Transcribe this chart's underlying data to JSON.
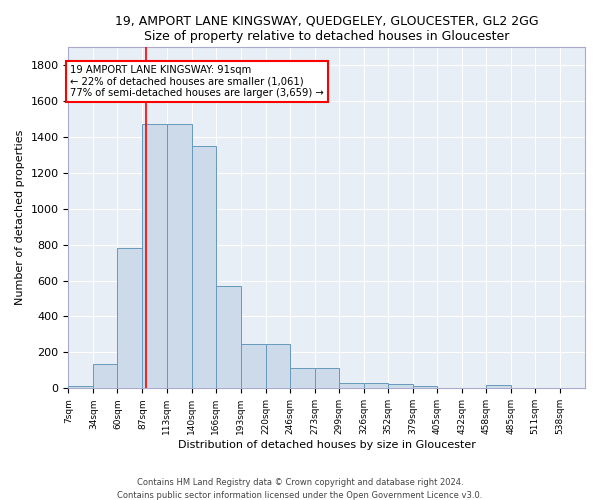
{
  "title": "19, AMPORT LANE KINGSWAY, QUEDGELEY, GLOUCESTER, GL2 2GG",
  "subtitle": "Size of property relative to detached houses in Gloucester",
  "xlabel": "Distribution of detached houses by size in Gloucester",
  "ylabel": "Number of detached properties",
  "bar_color": "#ccdaea",
  "bar_edge_color": "#6699bb",
  "background_color": "#e8eef6",
  "grid_color": "white",
  "categories": [
    "7sqm",
    "34sqm",
    "60sqm",
    "87sqm",
    "113sqm",
    "140sqm",
    "166sqm",
    "193sqm",
    "220sqm",
    "246sqm",
    "273sqm",
    "299sqm",
    "326sqm",
    "352sqm",
    "379sqm",
    "405sqm",
    "432sqm",
    "458sqm",
    "485sqm",
    "511sqm",
    "538sqm"
  ],
  "values": [
    15,
    135,
    780,
    1470,
    1470,
    1350,
    570,
    245,
    245,
    115,
    115,
    30,
    30,
    25,
    15,
    0,
    0,
    20,
    0,
    0,
    0
  ],
  "red_line_x": 91,
  "annotation_line1": "19 AMPORT LANE KINGSWAY: 91sqm",
  "annotation_line2": "← 22% of detached houses are smaller (1,061)",
  "annotation_line3": "77% of semi-detached houses are larger (3,659) →",
  "footer_line1": "Contains HM Land Registry data © Crown copyright and database right 2024.",
  "footer_line2": "Contains public sector information licensed under the Open Government Licence v3.0.",
  "ylim": [
    0,
    1900
  ],
  "yticks": [
    0,
    200,
    400,
    600,
    800,
    1000,
    1200,
    1400,
    1600,
    1800
  ],
  "bin_edges": [
    7,
    34,
    60,
    87,
    113,
    140,
    166,
    193,
    220,
    246,
    273,
    299,
    326,
    352,
    379,
    405,
    432,
    458,
    485,
    511,
    538,
    565
  ]
}
